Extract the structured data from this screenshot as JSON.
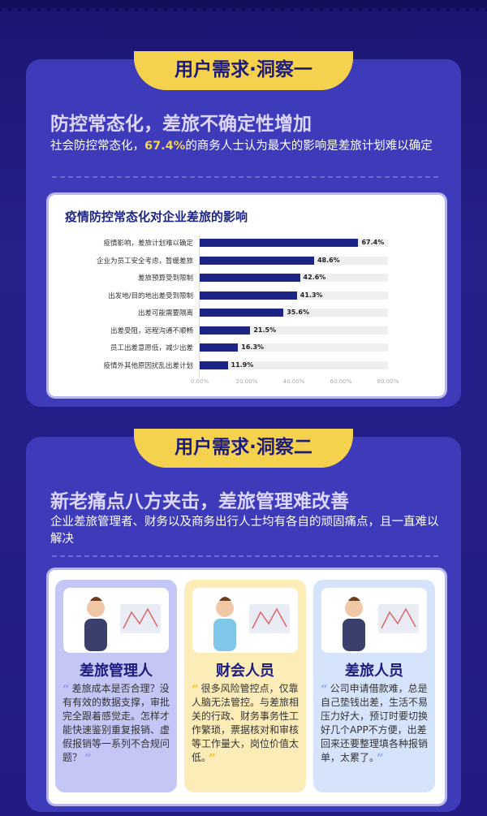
{
  "section1": {
    "badge": "用户需求·洞察一",
    "title": "防控常态化，差旅不确定性增加",
    "sub_pre": "社会防控常态化，",
    "sub_hl": "67.4%",
    "sub_post": "的商务人士认为最大的影响是差旅计划难以确定"
  },
  "chart_data": {
    "type": "bar",
    "orientation": "horizontal",
    "title": "疫情防控常态化对企业差旅的影响",
    "categories": [
      "疫情影响，差旅计划难以确定",
      "企业为员工安全考虑，暂缓差旅",
      "差旅预算受到限制",
      "出发地/目的地出差受到限制",
      "出差可能需要隔离",
      "出差受阻，远程沟通不顺畅",
      "员工出差意愿低，减少出差",
      "疫情外其他原因扰乱出差计划"
    ],
    "values": [
      67.4,
      48.6,
      42.6,
      41.3,
      35.6,
      21.5,
      16.3,
      11.9
    ],
    "value_labels": [
      "67.4%",
      "48.6%",
      "42.6%",
      "41.3%",
      "35.6%",
      "21.5%",
      "16.3%",
      "11.9%"
    ],
    "xlim": [
      0,
      80
    ],
    "xticks": [
      "0.00%",
      "20.00%",
      "40.00%",
      "60.00%",
      "80.00%"
    ],
    "bar_color": "#1c2585",
    "track_color": "#efefef"
  },
  "section2": {
    "badge": "用户需求·洞察二",
    "title": "新老痛点八方夹击，差旅管理难改善",
    "sub": "企业差旅管理者、财务以及商务出行人士均有各自的顽固痛点，且一直难以解决",
    "personas": [
      {
        "name": "差旅管理人",
        "text": "差旅成本是否合理？没有有效的数据支撑，审批完全跟着感觉走。怎样才能快速鉴别重复报销、虚假报销等一系列不合规问题？",
        "color": "#c4c6f5",
        "quote": "#9d95e8"
      },
      {
        "name": "财会人员",
        "text": "很多风险管控点，仅靠人脑无法管控。与差旅相关的行政、财务事务性工作繁琐，票据核对和审核等工作量大，岗位价值太低。",
        "color": "#fcecb8",
        "quote": "#f3c22c"
      },
      {
        "name": "差旅人员",
        "text": "公司申请借款难，总是自己垫钱出差，生活不易压力好大，预订时要切换好几个APP不方便，出差回来还要整理填各种报销单，太累了。",
        "color": "#d6e4fb",
        "quote": "#8fa9ee"
      }
    ]
  }
}
